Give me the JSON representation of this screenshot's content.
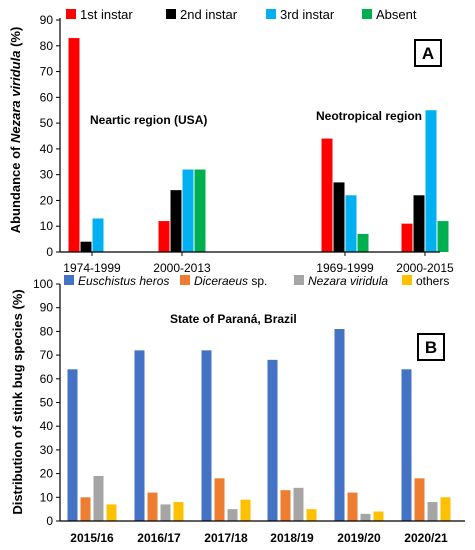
{
  "chart_data": [
    {
      "type": "bar",
      "panel_label": "A",
      "ylabel_prefix": "Abundance of ",
      "ylabel_italic": "Nezara viridula",
      "ylabel_suffix": " (%)",
      "ylim": [
        0,
        90
      ],
      "yticks": [
        "0",
        "10",
        "20",
        "30",
        "40",
        "50",
        "60",
        "70",
        "80",
        "90"
      ],
      "legend_position": "top",
      "grid": false,
      "categories": [
        "1974-1999",
        "2000-2013",
        "1969-1999",
        "2000-2015"
      ],
      "annotations": [
        "Neartic region (USA)",
        "Neotropical region"
      ],
      "series": [
        {
          "name": "1st instar",
          "color": "#ff0000",
          "values": [
            83,
            12,
            44,
            11
          ]
        },
        {
          "name": "2nd instar",
          "color": "#000000",
          "values": [
            4,
            24,
            27,
            22
          ]
        },
        {
          "name": "3rd instar",
          "color": "#00b0f0",
          "values": [
            13,
            32,
            22,
            55
          ]
        },
        {
          "name": "Absent",
          "color": "#00b050",
          "values": [
            null,
            32,
            7,
            12
          ]
        }
      ]
    },
    {
      "type": "bar",
      "panel_label": "B",
      "ylabel": "Distribution of stink bug species (%)",
      "ylim": [
        0,
        100
      ],
      "yticks": [
        "0",
        "10",
        "20",
        "30",
        "40",
        "50",
        "60",
        "70",
        "80",
        "90",
        "100"
      ],
      "legend_position": "top",
      "grid": false,
      "categories": [
        "2015/16",
        "2016/17",
        "2017/18",
        "2018/19",
        "2019/20",
        "2020/21"
      ],
      "annotations": [
        "State of Paraná, Brazil"
      ],
      "series": [
        {
          "name_italic": "Euschistus heros",
          "name_plain": "",
          "color": "#4472c4",
          "values": [
            64,
            72,
            72,
            68,
            81,
            64
          ]
        },
        {
          "name_italic": "Diceraeus",
          "name_plain": " sp.",
          "color": "#ed7d31",
          "values": [
            10,
            12,
            18,
            13,
            12,
            18
          ]
        },
        {
          "name_italic": "Nezara viridula",
          "name_plain": "",
          "color": "#a5a5a5",
          "values": [
            19,
            7,
            5,
            14,
            3,
            8
          ]
        },
        {
          "name_italic": "",
          "name_plain": "others",
          "color": "#ffc000",
          "values": [
            7,
            8,
            9,
            5,
            4,
            10
          ]
        }
      ]
    }
  ]
}
